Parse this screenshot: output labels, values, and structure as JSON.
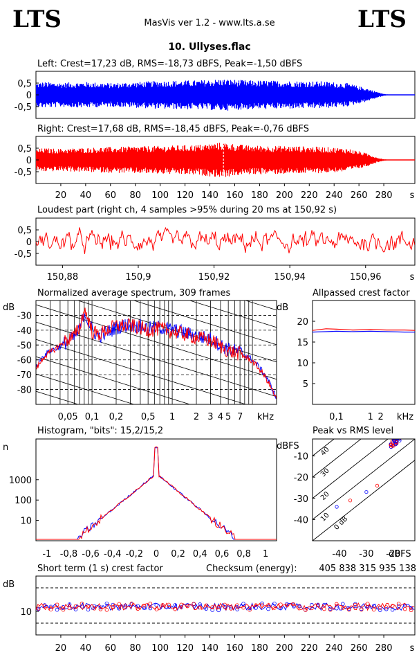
{
  "header": {
    "logo_left": "LTS",
    "logo_right": "LTS",
    "app_title": "MasVis ver 1.2 - www.lts.a.se",
    "file_name": "10. Ullyses.flac"
  },
  "colors": {
    "left": "#0000ff",
    "right": "#ff0000",
    "grid": "#000000"
  },
  "chart_data": [
    {
      "type": "area",
      "title": "Left: Crest=17,23 dB, RMS=-18,73 dBFS, Peak=-1,50 dBFS",
      "yticks": [
        "0,5",
        "0",
        "-0,5"
      ],
      "ylim": [
        -1,
        1
      ],
      "xlim": [
        0,
        305
      ],
      "envelope": [
        [
          0,
          0.5
        ],
        [
          5,
          0.55
        ],
        [
          20,
          0.52
        ],
        [
          40,
          0.55
        ],
        [
          60,
          0.5
        ],
        [
          80,
          0.55
        ],
        [
          100,
          0.6
        ],
        [
          130,
          0.62
        ],
        [
          150,
          0.68
        ],
        [
          170,
          0.62
        ],
        [
          200,
          0.6
        ],
        [
          230,
          0.58
        ],
        [
          250,
          0.5
        ],
        [
          265,
          0.3
        ],
        [
          275,
          0.12
        ],
        [
          280,
          0.04
        ],
        [
          285,
          0.0
        ],
        [
          305,
          0.0
        ]
      ]
    },
    {
      "type": "area",
      "title": "Right: Crest=17,68 dB, RMS=-18,45 dBFS, Peak=-0,76 dBFS",
      "yticks": [
        "0,5",
        "0",
        "-0,5"
      ],
      "ylim": [
        -1,
        1
      ],
      "xlim": [
        0,
        305
      ],
      "marker_x": 150.92,
      "xticks": [
        "20",
        "40",
        "60",
        "80",
        "100",
        "120",
        "140",
        "160",
        "180",
        "200",
        "220",
        "240",
        "260",
        "280",
        "s"
      ],
      "envelope": [
        [
          0,
          0.45
        ],
        [
          5,
          0.5
        ],
        [
          20,
          0.48
        ],
        [
          40,
          0.52
        ],
        [
          60,
          0.55
        ],
        [
          80,
          0.58
        ],
        [
          100,
          0.6
        ],
        [
          130,
          0.65
        ],
        [
          150,
          0.75
        ],
        [
          170,
          0.62
        ],
        [
          200,
          0.6
        ],
        [
          230,
          0.56
        ],
        [
          250,
          0.5
        ],
        [
          265,
          0.3
        ],
        [
          275,
          0.1
        ],
        [
          280,
          0.03
        ],
        [
          285,
          0.0
        ],
        [
          305,
          0.0
        ]
      ]
    },
    {
      "type": "line",
      "title": "Loudest part (right ch, 4 samples >95% during 20 ms at 150,92 s)",
      "yticks": [
        "0,5",
        "0",
        "-0,5"
      ],
      "xticks": [
        "150,88",
        "150,9",
        "150,92",
        "150,94",
        "150,96",
        "s"
      ],
      "xlim": [
        150.873,
        150.973
      ],
      "ylim": [
        -1,
        1
      ]
    },
    {
      "type": "line",
      "title": "Normalized average spectrum, 309 frames",
      "ylabel": "dB",
      "yticks": [
        "-30",
        "-40",
        "-50",
        "-60",
        "-70",
        "-80"
      ],
      "xticks": [
        "0,05",
        "0,1",
        "0,2",
        "0,5",
        "1",
        "2",
        "3",
        "4",
        "5",
        "7",
        "kHz"
      ],
      "ylim": [
        -90,
        -20
      ],
      "xlim_khz": [
        0.02,
        20
      ],
      "series": [
        {
          "points": [
            [
              0.02,
              -65
            ],
            [
              0.025,
              -57
            ],
            [
              0.03,
              -54
            ],
            [
              0.04,
              -51
            ],
            [
              0.05,
              -47
            ],
            [
              0.06,
              -45
            ],
            [
              0.07,
              -40
            ],
            [
              0.08,
              -28
            ],
            [
              0.09,
              -34
            ],
            [
              0.1,
              -40
            ],
            [
              0.12,
              -44
            ],
            [
              0.15,
              -42
            ],
            [
              0.2,
              -38
            ],
            [
              0.3,
              -36
            ],
            [
              0.5,
              -39
            ],
            [
              0.7,
              -38
            ],
            [
              1,
              -40
            ],
            [
              2,
              -44
            ],
            [
              3,
              -46
            ],
            [
              4,
              -50
            ],
            [
              5,
              -53
            ],
            [
              7,
              -55
            ],
            [
              10,
              -60
            ],
            [
              15,
              -72
            ],
            [
              20,
              -86
            ]
          ]
        },
        {
          "points": [
            [
              0.02,
              -66
            ],
            [
              0.025,
              -58
            ],
            [
              0.03,
              -55
            ],
            [
              0.04,
              -50
            ],
            [
              0.05,
              -46
            ],
            [
              0.06,
              -44
            ],
            [
              0.07,
              -38
            ],
            [
              0.08,
              -26
            ],
            [
              0.09,
              -33
            ],
            [
              0.1,
              -41
            ],
            [
              0.12,
              -43
            ],
            [
              0.15,
              -40
            ],
            [
              0.2,
              -37
            ],
            [
              0.3,
              -37
            ],
            [
              0.5,
              -40
            ],
            [
              0.7,
              -39
            ],
            [
              1,
              -41
            ],
            [
              2,
              -45
            ],
            [
              3,
              -47
            ],
            [
              4,
              -51
            ],
            [
              5,
              -54
            ],
            [
              7,
              -56
            ],
            [
              10,
              -61
            ],
            [
              15,
              -73
            ],
            [
              20,
              -87
            ]
          ]
        }
      ]
    },
    {
      "type": "line",
      "title": "Allpassed crest factor",
      "ylabel": "dB",
      "yticks": [
        "20",
        "15",
        "10",
        "5"
      ],
      "xticks": [
        "0,1",
        "1",
        "2",
        "kHz"
      ],
      "ylim": [
        0,
        25
      ],
      "series": [
        {
          "points": [
            [
              0.02,
              17.4
            ],
            [
              0.05,
              17.5
            ],
            [
              0.1,
              17.6
            ],
            [
              0.3,
              17.5
            ],
            [
              1,
              17.6
            ],
            [
              3,
              17.5
            ],
            [
              10,
              17.4
            ],
            [
              20,
              17.4
            ]
          ]
        },
        {
          "points": [
            [
              0.02,
              17.8
            ],
            [
              0.05,
              18.2
            ],
            [
              0.1,
              18.1
            ],
            [
              0.3,
              17.9
            ],
            [
              1,
              18.0
            ],
            [
              3,
              17.9
            ],
            [
              10,
              17.9
            ],
            [
              20,
              17.8
            ]
          ]
        }
      ]
    },
    {
      "type": "line",
      "title": "Histogram, \"bits\": 15,2/15,2",
      "ylabel": "n",
      "yticks": [
        "1000",
        "100",
        "10"
      ],
      "xticks": [
        "-1",
        "-0,8",
        "-0,6",
        "-0,4",
        "-0,2",
        "0",
        "0,2",
        "0,4",
        "0,6",
        "0,8",
        "1"
      ],
      "xlim": [
        -1.1,
        1.1
      ]
    },
    {
      "type": "scatter",
      "title": "Peak vs RMS level",
      "ylabel": "dBFS",
      "xlabel": "dBFS",
      "yticks": [
        "-10",
        "-20",
        "-30",
        "-40"
      ],
      "xticks": [
        "-40",
        "-30",
        "-20"
      ],
      "diagonals": [
        "40",
        "30",
        "20",
        "10",
        "0 dB"
      ],
      "xlim": [
        -50,
        -12
      ],
      "ylim": [
        -50,
        -2
      ]
    },
    {
      "type": "line",
      "title": "Short term (1 s) crest factor",
      "ylabel": "dB",
      "yticks": [
        "10"
      ],
      "xticks": [
        "20",
        "40",
        "60",
        "80",
        "100",
        "120",
        "140",
        "160",
        "180",
        "200",
        "220",
        "240",
        "260",
        "280",
        "s"
      ],
      "checksum_label": "Checksum (energy):",
      "checksum_value": "405 838 315 935 138",
      "xlim": [
        0,
        305
      ],
      "ylim": [
        0,
        25
      ]
    }
  ]
}
